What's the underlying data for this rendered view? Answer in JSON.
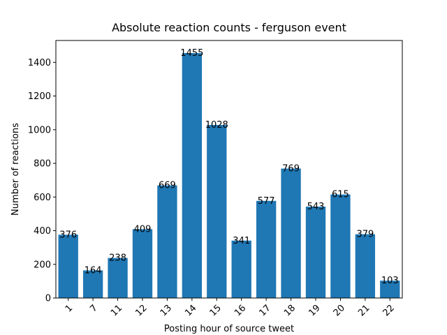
{
  "chart_data": {
    "type": "bar",
    "title": "Absolute reaction counts - ferguson event",
    "xlabel": "Posting hour of source tweet",
    "ylabel": "Number of reactions",
    "categories": [
      "1",
      "7",
      "11",
      "12",
      "13",
      "14",
      "15",
      "16",
      "17",
      "18",
      "19",
      "20",
      "21",
      "22"
    ],
    "values": [
      376,
      164,
      238,
      409,
      669,
      1455,
      1028,
      341,
      577,
      769,
      543,
      615,
      379,
      103
    ],
    "ylim": [
      0,
      1530
    ],
    "yticks": [
      0,
      200,
      400,
      600,
      800,
      1000,
      1200,
      1400
    ],
    "bar_color": "#1f77b4",
    "grid": false,
    "legend": "none",
    "xtick_rotation": -45
  }
}
